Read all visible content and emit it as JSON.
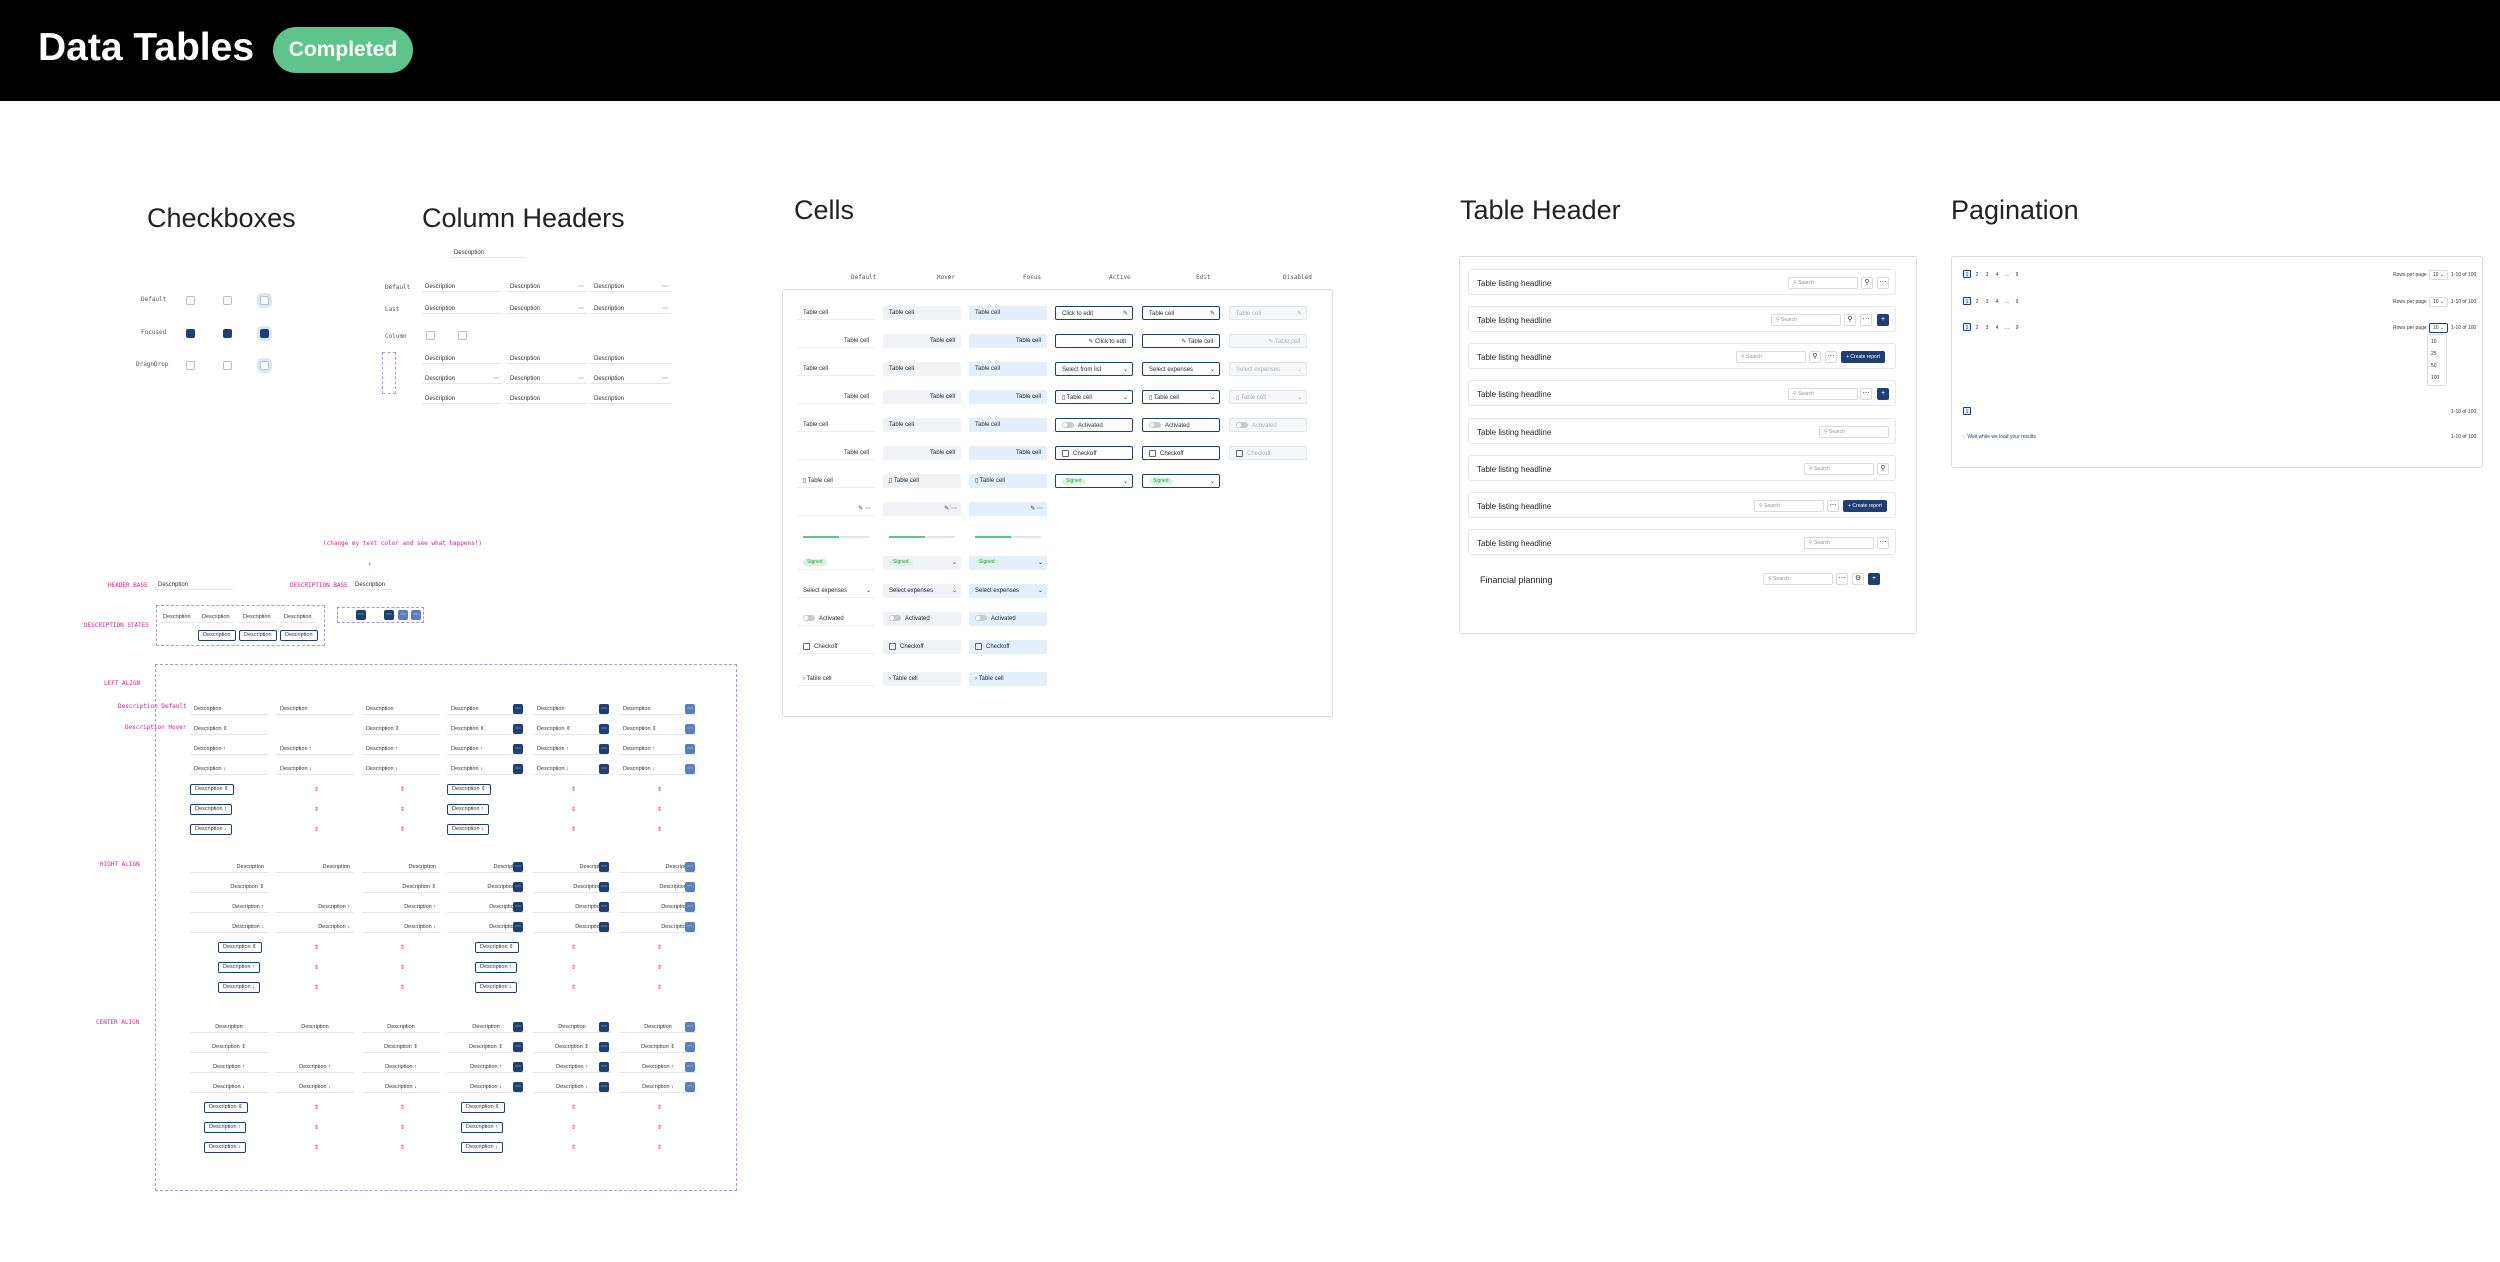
{
  "header": {
    "title": "Data Tables",
    "status": "Completed"
  },
  "sections": {
    "checkboxes": "Checkboxes",
    "column_headers": "Column Headers",
    "cells": "Cells",
    "table_header": "Table Header",
    "pagination": "Pagination"
  },
  "checkboxes": {
    "rows": [
      "Default",
      "Focused",
      "DragnDrop"
    ]
  },
  "column_headers": {
    "desc_label": "Description",
    "rows": [
      "Default",
      "Last",
      "Column"
    ]
  },
  "annotations": {
    "note": "(change my text color and see what happens!)",
    "header_base": "HEADER BASE",
    "description_base": "DESCRIPTION BASE",
    "description_states": "DESCRIPTION STATES",
    "left_align": "LEFT ALIGN",
    "right_align": "RIGHT ALIGN",
    "center_align": "CENTER ALIGN",
    "desc_default": "Description Default",
    "desc_hover": "Description Hover"
  },
  "cells": {
    "columns": [
      "Default",
      "Hover",
      "Focus",
      "Active",
      "Edit",
      "Disabled"
    ],
    "table_cell": "Table cell",
    "click_to_edit": "Click to edit",
    "select_from_list": "Select from list",
    "select_expenses": "Select expenses",
    "activated": "Activated",
    "checkoff": "Checkoff",
    "tag": "Signed"
  },
  "table_header": {
    "rows": [
      "Table listing headline",
      "Table listing headline",
      "Table listing headline",
      "Table listing headline",
      "Table listing headline",
      "Table listing headline",
      "Table listing headline",
      "Table listing headline",
      "Financial planning"
    ],
    "search": "Search",
    "create": "Create report"
  },
  "pagination": {
    "pages": [
      "1",
      "2",
      "3",
      "4",
      "…",
      "9"
    ],
    "rows_per_page": "Rows per page",
    "per_page_value": "10",
    "range": "1-10 of 100",
    "options": [
      "10",
      "25",
      "50",
      "100"
    ],
    "single_page": "1",
    "loading": "Wait while we load your results"
  },
  "colors": {
    "accent": "#1d3f73",
    "success": "#5fc48c",
    "annotation": "#e0208a",
    "dash": "#b78ff0"
  }
}
